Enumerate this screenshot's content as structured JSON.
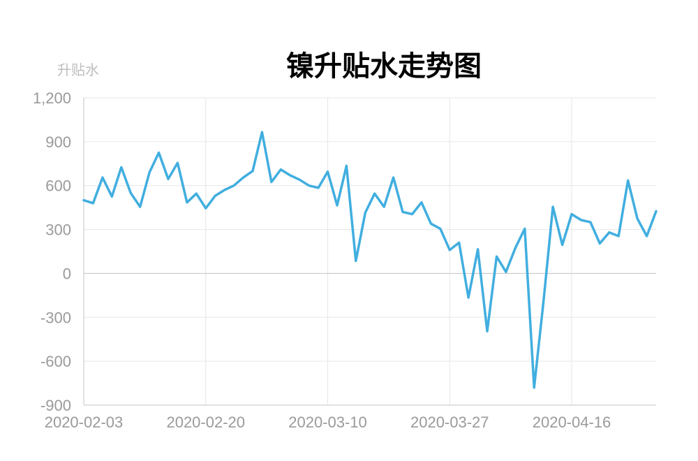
{
  "chart_data": {
    "type": "line",
    "title": "镍升贴水走势图",
    "ylabel": "升贴水",
    "xlabel": "",
    "ylim": [
      -900,
      1200
    ],
    "yticks": [
      1200,
      900,
      600,
      300,
      0,
      -300,
      -600,
      -900
    ],
    "ytick_labels": [
      "1,200",
      "900",
      "600",
      "300",
      "0",
      "-300",
      "-600",
      "-900"
    ],
    "xtick_labels": [
      "2020-02-03",
      "2020-02-20",
      "2020-03-10",
      "2020-03-27",
      "2020-04-16"
    ],
    "xtick_index": [
      0,
      13,
      26,
      39,
      52
    ],
    "grid": true,
    "color": "#41aedf",
    "series": [
      {
        "values": [
          500,
          480,
          655,
          525,
          725,
          550,
          455,
          690,
          825,
          645,
          755,
          485,
          545,
          445,
          530,
          570,
          600,
          655,
          700,
          965,
          625,
          710,
          670,
          640,
          600,
          585,
          695,
          465,
          735,
          85,
          415,
          545,
          455,
          655,
          420,
          405,
          485,
          340,
          305,
          160,
          210,
          -165,
          165,
          -395,
          115,
          10,
          175,
          305,
          -780,
          -190,
          455,
          195,
          405,
          365,
          350,
          205,
          280,
          255,
          635,
          375,
          255,
          425
        ]
      }
    ]
  }
}
